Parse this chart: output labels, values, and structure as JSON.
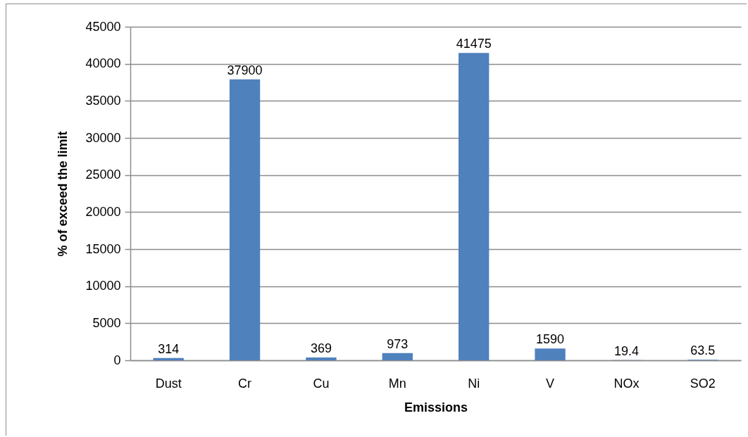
{
  "chart_data": {
    "type": "bar",
    "xlabel": "Emissions",
    "ylabel": "% of exceed  the limit",
    "categories": [
      "Dust",
      "Cr",
      "Cu",
      "Mn",
      "Ni",
      "V",
      "NOx",
      "SO2"
    ],
    "values": [
      314,
      37900,
      369,
      973,
      41475,
      1590,
      19.4,
      63.5
    ],
    "color": "#4f81bd",
    "ylim": [
      0,
      45000
    ],
    "yticks": [
      0,
      5000,
      10000,
      15000,
      20000,
      25000,
      30000,
      35000,
      40000,
      45000
    ],
    "grid": "y",
    "data_labels": true
  }
}
